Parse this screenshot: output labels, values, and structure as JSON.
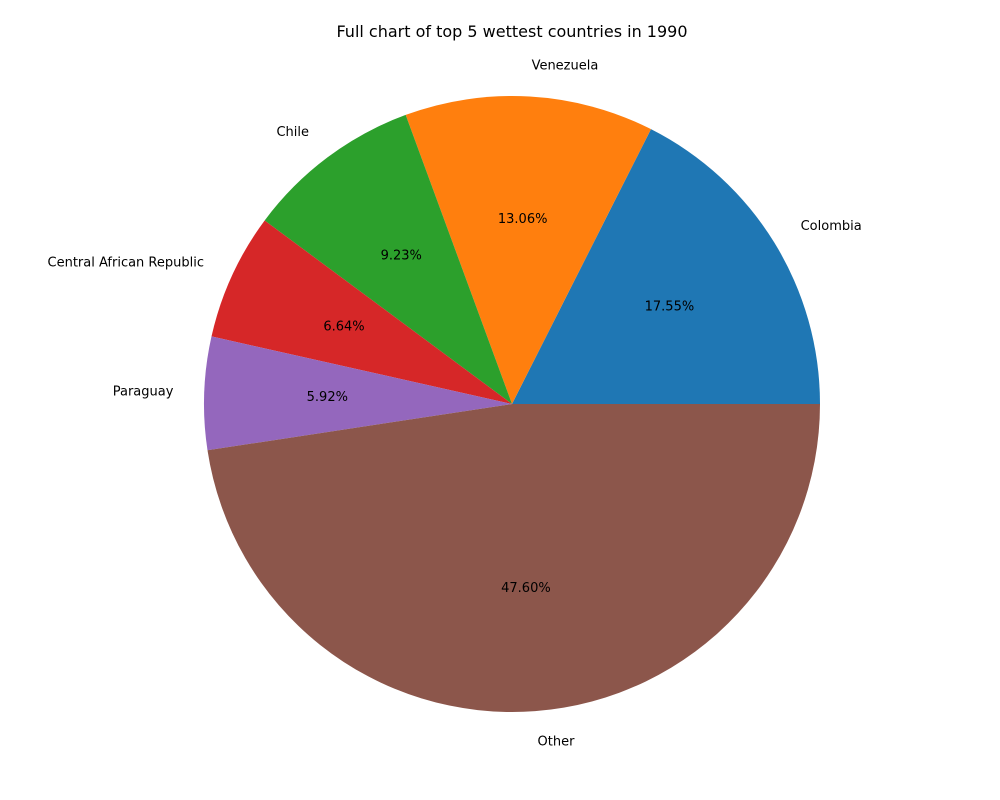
{
  "chart_data": {
    "type": "pie",
    "title": "Full chart of top 5 wettest countries in 1990",
    "categories": [
      "Colombia",
      "Venezuela",
      "Chile",
      "Central African Republic",
      "Paraguay",
      "Other"
    ],
    "values": [
      17.55,
      13.06,
      9.23,
      6.64,
      5.92,
      47.6
    ],
    "value_labels": [
      "17.55%",
      "13.06%",
      "9.23%",
      "6.64%",
      "5.92%",
      "47.60%"
    ],
    "colors": [
      "#1f77b4",
      "#ff7f0e",
      "#2ca02c",
      "#d62728",
      "#9467bd",
      "#8c564b"
    ],
    "start_angle_deg": 0,
    "direction": "counterclockwise",
    "legend": "none"
  }
}
